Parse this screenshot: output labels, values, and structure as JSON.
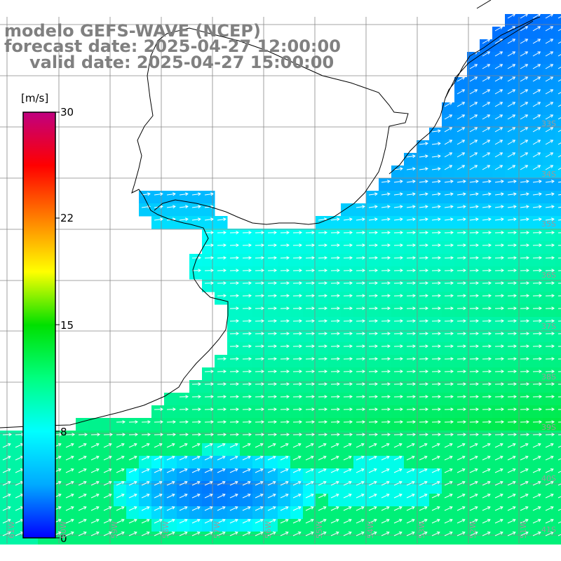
{
  "title": {
    "line1": "modelo GEFS-WAVE (NCEP)",
    "line2": "forecast date: 2025-04-27 12:00:00",
    "line3": "valid date: 2025-04-27 15:00:00"
  },
  "colorbar": {
    "unit": "[m/s]",
    "ticks": [
      "30",
      "22",
      "15",
      "8",
      "0"
    ],
    "min": 0,
    "max": 30,
    "colors": [
      "#0000ff",
      "#00aaff",
      "#00ffff",
      "#00ff80",
      "#00e000",
      "#ffff00",
      "#ff8000",
      "#ff0000",
      "#c00080"
    ]
  },
  "grid": {
    "lat_labels": [
      "33S",
      "34S",
      "35S",
      "36S",
      "37S",
      "38S",
      "39S",
      "40S",
      "41S"
    ],
    "lon_labels": [
      "61W",
      "60W",
      "59W",
      "58W",
      "57W",
      "56W",
      "55W",
      "54W",
      "53W",
      "52W",
      "51W"
    ]
  },
  "map_colors": {
    "land": "#ffffff",
    "coast": "#000000",
    "grid_line": "#888888",
    "arrow": "#ffffff"
  }
}
